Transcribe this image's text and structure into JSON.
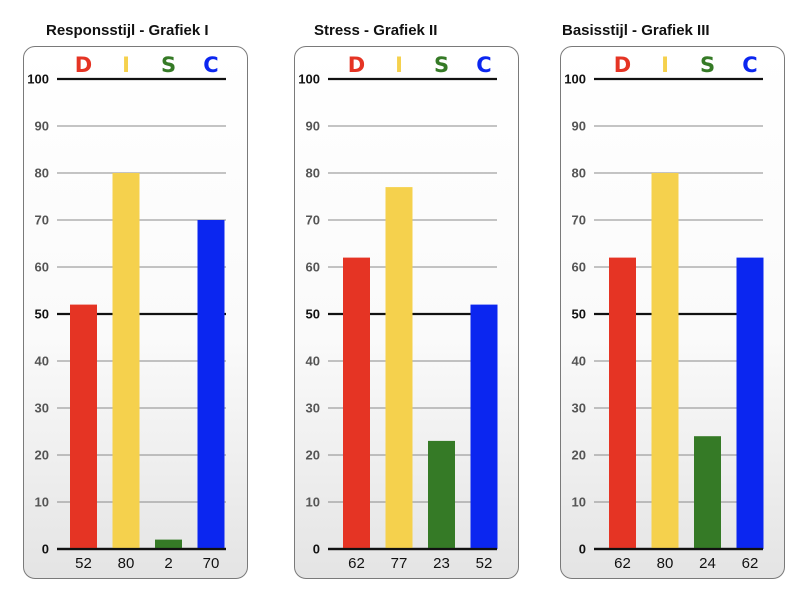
{
  "chart_data": [
    {
      "type": "bar",
      "title": "Responsstijl - Grafiek I",
      "categories": [
        "D",
        "I",
        "S",
        "C"
      ],
      "values": [
        52,
        80,
        2,
        70
      ],
      "ylim": [
        0,
        100
      ],
      "yticks": [
        0,
        10,
        20,
        30,
        40,
        50,
        60,
        70,
        80,
        90,
        100
      ],
      "grid": true
    },
    {
      "type": "bar",
      "title": "Stress - Grafiek II",
      "categories": [
        "D",
        "I",
        "S",
        "C"
      ],
      "values": [
        62,
        77,
        23,
        52
      ],
      "ylim": [
        0,
        100
      ],
      "yticks": [
        0,
        10,
        20,
        30,
        40,
        50,
        60,
        70,
        80,
        90,
        100
      ],
      "grid": true
    },
    {
      "type": "bar",
      "title": "Basisstijl - Grafiek III",
      "categories": [
        "D",
        "I",
        "S",
        "C"
      ],
      "values": [
        62,
        80,
        24,
        62
      ],
      "ylim": [
        0,
        100
      ],
      "yticks": [
        0,
        10,
        20,
        30,
        40,
        50,
        60,
        70,
        80,
        90,
        100
      ],
      "grid": true
    }
  ],
  "colors": {
    "D": "#e53424",
    "I": "#f5d14d",
    "S": "#357a26",
    "C": "#0b26f0"
  }
}
